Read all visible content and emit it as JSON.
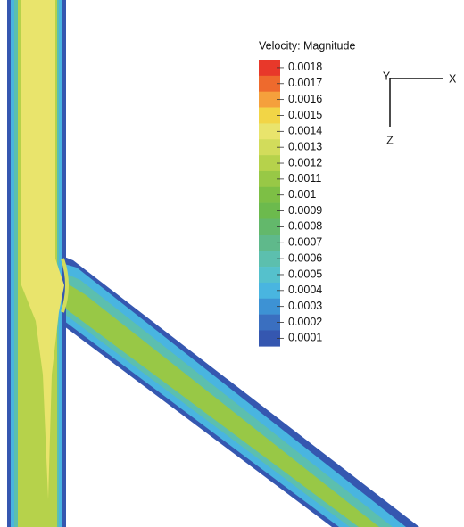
{
  "chart_data": {
    "type": "contour",
    "title": "Velocity: Magnitude",
    "levels": [
      0.0018,
      0.0017,
      0.0016,
      0.0015,
      0.0014,
      0.0013,
      0.0012,
      0.0011,
      0.001,
      0.0009,
      0.0008,
      0.0007,
      0.0006,
      0.0005,
      0.0004,
      0.0003,
      0.0002,
      0.0001
    ],
    "colors": [
      "#e8382a",
      "#ee6a2d",
      "#f5a03c",
      "#f2d546",
      "#e9e46c",
      "#d2dc5b",
      "#b6d24b",
      "#98c846",
      "#7dbf45",
      "#6cba4d",
      "#63b86b",
      "#5fb98b",
      "#5cbfae",
      "#55c1cc",
      "#49b5e0",
      "#3d92d4",
      "#3a6fc0",
      "#3557b0"
    ],
    "axes": {
      "x": "X",
      "y": "Y",
      "z": "Z"
    }
  }
}
